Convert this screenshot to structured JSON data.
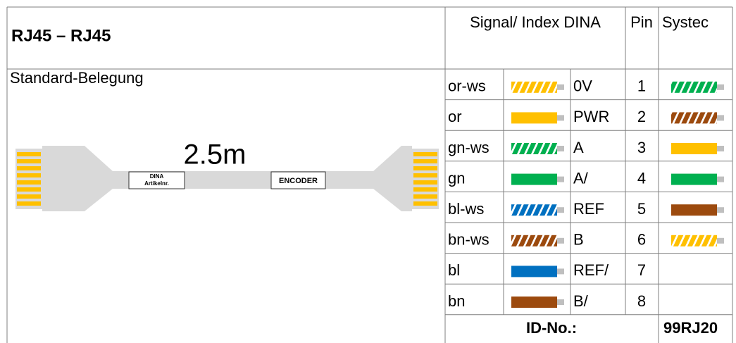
{
  "header": {
    "title": "RJ45 – RJ45",
    "subtitle": "Standard-Belegung"
  },
  "cable": {
    "length": "2.5m",
    "label_left": [
      "DINA",
      "Artikelnr."
    ],
    "label_right": "ENCODER"
  },
  "table": {
    "columns": [
      "Signal/ Index DINA",
      "Pin",
      "Systec"
    ],
    "rows": [
      {
        "signal": "or-ws",
        "wire": {
          "color": "#ffc000",
          "striped": true
        },
        "dina": "0V",
        "pin": 1
      },
      {
        "signal": "or",
        "wire": {
          "color": "#ffc000",
          "striped": false
        },
        "dina": "PWR",
        "pin": 2
      },
      {
        "signal": "gn-ws",
        "wire": {
          "color": "#00b050",
          "striped": true
        },
        "dina": "A",
        "pin": 3
      },
      {
        "signal": "gn",
        "wire": {
          "color": "#00b050",
          "striped": false
        },
        "dina": "A/",
        "pin": 4
      },
      {
        "signal": "bl-ws",
        "wire": {
          "color": "#0070c0",
          "striped": true
        },
        "dina": "REF",
        "pin": 5
      },
      {
        "signal": "bn-ws",
        "wire": {
          "color": "#9c4a0e",
          "striped": true
        },
        "dina": "B",
        "pin": 6
      },
      {
        "signal": "bl",
        "wire": {
          "color": "#0070c0",
          "striped": false
        },
        "dina": "REF/",
        "pin": 7
      },
      {
        "signal": "bn",
        "wire": {
          "color": "#9c4a0e",
          "striped": false
        },
        "dina": "B/",
        "pin": 8
      }
    ],
    "systec": [
      {
        "color": "#00b050",
        "striped": true
      },
      {
        "color": "#9c4a0e",
        "striped": true
      },
      {
        "color": "#ffc000",
        "striped": false
      },
      {
        "color": "#00b050",
        "striped": false
      },
      {
        "color": "#9c4a0e",
        "striped": false
      },
      {
        "color": "#ffc000",
        "striped": true
      }
    ],
    "footer": {
      "label": "ID-No.:",
      "id": "99RJ20"
    }
  }
}
